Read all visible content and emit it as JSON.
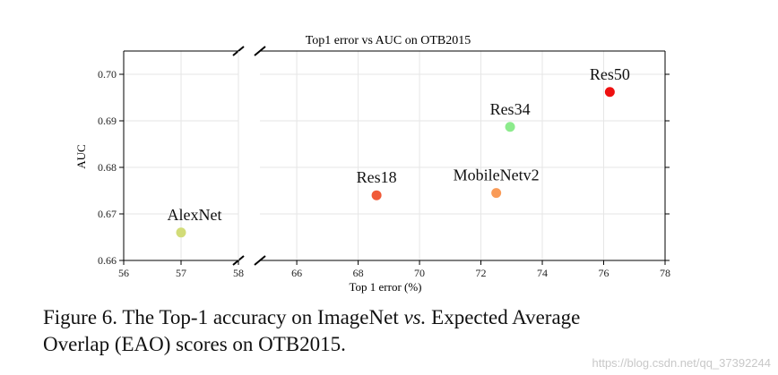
{
  "figure": {
    "title": "Top1 error vs AUC on OTB2015",
    "x_label": "Top 1 error (%)",
    "y_label": "AUC"
  },
  "chart_data": [
    {
      "type": "scatter",
      "xlim": [
        56,
        58
      ],
      "xticks": [
        56,
        57,
        58
      ],
      "ylim": [
        0.66,
        0.705
      ],
      "yticks": [
        0.66,
        0.67,
        0.68,
        0.69,
        {
          "value": 0.7,
          "label": "0.70"
        }
      ],
      "grid": true,
      "series": [
        {
          "name": "AlexNet",
          "color": "#d2dc78",
          "x": [
            57.0
          ],
          "values": [
            0.666
          ]
        }
      ]
    },
    {
      "type": "scatter",
      "xlim": [
        64.8,
        78
      ],
      "xticks": [
        66,
        68,
        70,
        72,
        74,
        76,
        78
      ],
      "ylim": [
        0.66,
        0.705
      ],
      "yticks": [
        0.66,
        0.67,
        0.68,
        0.69,
        0.7
      ],
      "grid": true,
      "series": [
        {
          "name": "Res18",
          "color": "#f05a38",
          "x": [
            68.6
          ],
          "values": [
            0.674
          ]
        },
        {
          "name": "MobileNetv2",
          "color": "#f99b58",
          "x": [
            72.5
          ],
          "values": [
            0.6745
          ]
        },
        {
          "name": "Res34",
          "color": "#8ceb8c",
          "x": [
            72.95
          ],
          "values": [
            0.6887
          ]
        },
        {
          "name": "Res50",
          "color": "#ee1010",
          "x": [
            76.2
          ],
          "values": [
            0.6962
          ]
        }
      ]
    }
  ],
  "caption": [
    "Figure 6. The Top-1 accuracy on ImageNet",
    "vs.",
    "Expected Average",
    "Overlap (EAO) scores on OTB2015."
  ],
  "watermark": "https://blog.csdn.net/qq_37392244"
}
